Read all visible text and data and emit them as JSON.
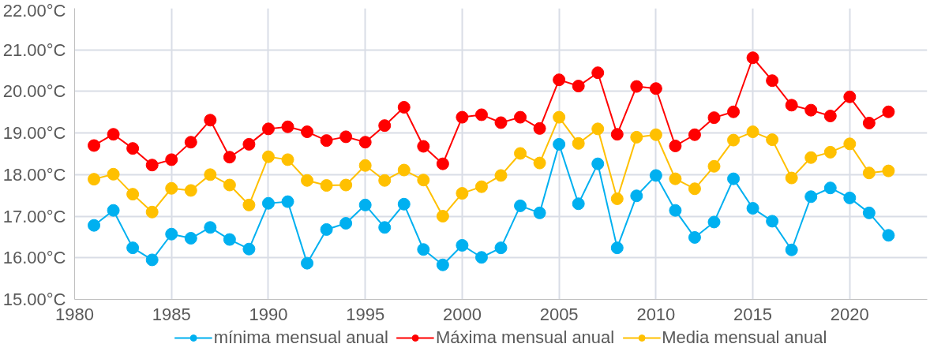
{
  "chart_data": {
    "type": "line",
    "x": [
      1981,
      1982,
      1983,
      1984,
      1985,
      1986,
      1987,
      1988,
      1989,
      1990,
      1991,
      1992,
      1993,
      1994,
      1995,
      1996,
      1997,
      1998,
      1999,
      2000,
      2001,
      2002,
      2003,
      2004,
      2005,
      2006,
      2007,
      2008,
      2009,
      2010,
      2011,
      2012,
      2013,
      2014,
      2015,
      2016,
      2017,
      2018,
      2019,
      2020,
      2021,
      2022
    ],
    "xlim": [
      1980,
      2024
    ],
    "xticks": [
      1980,
      1985,
      1990,
      1995,
      2000,
      2005,
      2010,
      2015,
      2020
    ],
    "ylim": [
      15,
      22
    ],
    "yticks": [
      {
        "value": 15,
        "label": "15.00°C"
      },
      {
        "value": 16,
        "label": "16.00°C"
      },
      {
        "value": 17,
        "label": "17.00°C"
      },
      {
        "value": 18,
        "label": "18.00°C"
      },
      {
        "value": 19,
        "label": "19.00°C"
      },
      {
        "value": 20,
        "label": "20.00°C"
      },
      {
        "value": 21,
        "label": "21.00°C"
      },
      {
        "value": 22,
        "label": "22.00°C"
      }
    ],
    "grid": true,
    "legend": "bottom",
    "marker": "circle",
    "line_style": "solid",
    "series": [
      {
        "name": "mínima mensual anual",
        "color": "#00b0f0",
        "values": [
          16.78,
          17.14,
          16.24,
          15.95,
          16.57,
          16.47,
          16.73,
          16.44,
          16.21,
          17.31,
          17.35,
          15.87,
          16.68,
          16.83,
          17.27,
          16.73,
          17.29,
          16.2,
          15.83,
          16.3,
          16.01,
          16.24,
          17.25,
          17.08,
          18.73,
          17.3,
          18.26,
          16.24,
          17.49,
          17.98,
          17.14,
          16.49,
          16.86,
          17.9,
          17.19,
          16.88,
          16.19,
          17.47,
          17.68,
          17.44,
          17.08,
          16.54
        ]
      },
      {
        "name": "Máxima mensual anual",
        "color": "#ff0000",
        "values": [
          18.7,
          18.97,
          18.63,
          18.23,
          18.36,
          18.78,
          19.31,
          18.42,
          18.73,
          19.1,
          19.15,
          19.03,
          18.82,
          18.91,
          18.78,
          19.18,
          19.62,
          18.68,
          18.26,
          19.38,
          19.44,
          19.25,
          19.38,
          19.11,
          20.28,
          20.13,
          20.45,
          18.97,
          20.12,
          20.07,
          18.69,
          18.96,
          19.37,
          19.51,
          20.81,
          20.26,
          19.67,
          19.55,
          19.41,
          19.87,
          19.24,
          19.51
        ]
      },
      {
        "name": "Media mensual anual",
        "color": "#ffc000",
        "values": [
          17.89,
          18.01,
          17.53,
          17.1,
          17.67,
          17.62,
          18.0,
          17.75,
          17.27,
          18.43,
          18.36,
          17.86,
          17.74,
          17.75,
          18.22,
          17.86,
          18.11,
          17.87,
          17.0,
          17.55,
          17.71,
          17.98,
          18.51,
          18.28,
          19.38,
          18.75,
          19.1,
          17.42,
          18.9,
          18.96,
          17.9,
          17.66,
          18.2,
          18.83,
          19.03,
          18.84,
          17.92,
          18.41,
          18.54,
          18.74,
          18.04,
          18.09
        ]
      }
    ]
  }
}
